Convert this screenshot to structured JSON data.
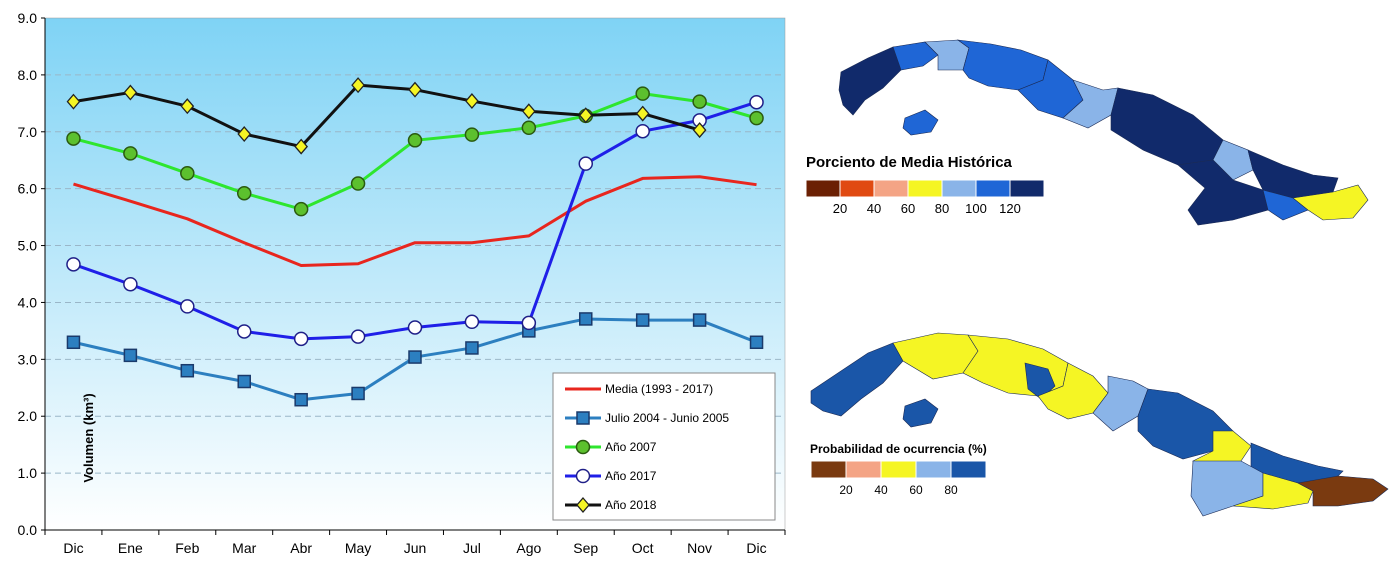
{
  "chart_data": {
    "type": "line",
    "ylabel": "Volumen (km³)",
    "ylim": [
      0,
      9
    ],
    "yticks": [
      "0.0",
      "1.0",
      "2.0",
      "3.0",
      "4.0",
      "5.0",
      "6.0",
      "7.0",
      "8.0",
      "9.0"
    ],
    "categories": [
      "Dic",
      "Ene",
      "Feb",
      "Mar",
      "Abr",
      "May",
      "Jun",
      "Jul",
      "Ago",
      "Sep",
      "Oct",
      "Nov",
      "Dic"
    ],
    "grid": true,
    "legend_position": "bottom-right",
    "series": [
      {
        "name": "Media (1993 - 2017)",
        "color": "#e8261e",
        "marker": "none",
        "values": [
          6.08,
          5.78,
          5.47,
          5.05,
          4.65,
          4.68,
          5.05,
          5.05,
          5.17,
          5.78,
          6.18,
          6.21,
          6.07
        ]
      },
      {
        "name": "Julio 2004 - Junio 2005",
        "color": "#2c7fc0",
        "marker": "square",
        "values": [
          3.3,
          3.07,
          2.8,
          2.61,
          2.29,
          2.4,
          3.04,
          3.2,
          3.5,
          3.71,
          3.69,
          3.69,
          3.3
        ]
      },
      {
        "name": "Año 2007",
        "color": "#2ee62e",
        "marker": "circle-green",
        "values": [
          6.88,
          6.62,
          6.27,
          5.92,
          5.64,
          6.09,
          6.85,
          6.95,
          7.07,
          7.28,
          7.67,
          7.53,
          7.24
        ]
      },
      {
        "name": "Año 2017",
        "color": "#1f1fe8",
        "marker": "circle-white",
        "values": [
          4.67,
          4.32,
          3.93,
          3.49,
          3.36,
          3.4,
          3.56,
          3.66,
          3.64,
          6.44,
          7.01,
          7.2,
          7.52
        ]
      },
      {
        "name": "Año 2018",
        "color": "#111111",
        "marker": "diamond",
        "values": [
          7.53,
          7.69,
          7.45,
          6.96,
          6.74,
          7.82,
          7.74,
          7.54,
          7.36,
          7.29,
          7.32,
          7.03,
          null
        ]
      }
    ]
  },
  "map_top": {
    "title": "Porciento de Media Histórica",
    "scale_colors": [
      "#6b2004",
      "#e04a12",
      "#f4a485",
      "#f5f524",
      "#8ab4e8",
      "#1f66d6",
      "#112a6b"
    ],
    "scale_labels": [
      "20",
      "40",
      "60",
      "80",
      "100",
      "120"
    ]
  },
  "map_bottom": {
    "title": "Probabilidad de ocurrencia (%)",
    "scale_colors": [
      "#7a3a10",
      "#f4a485",
      "#f5f524",
      "#8ab4e8",
      "#1a56a8"
    ],
    "scale_labels": [
      "20",
      "40",
      "60",
      "80"
    ]
  }
}
